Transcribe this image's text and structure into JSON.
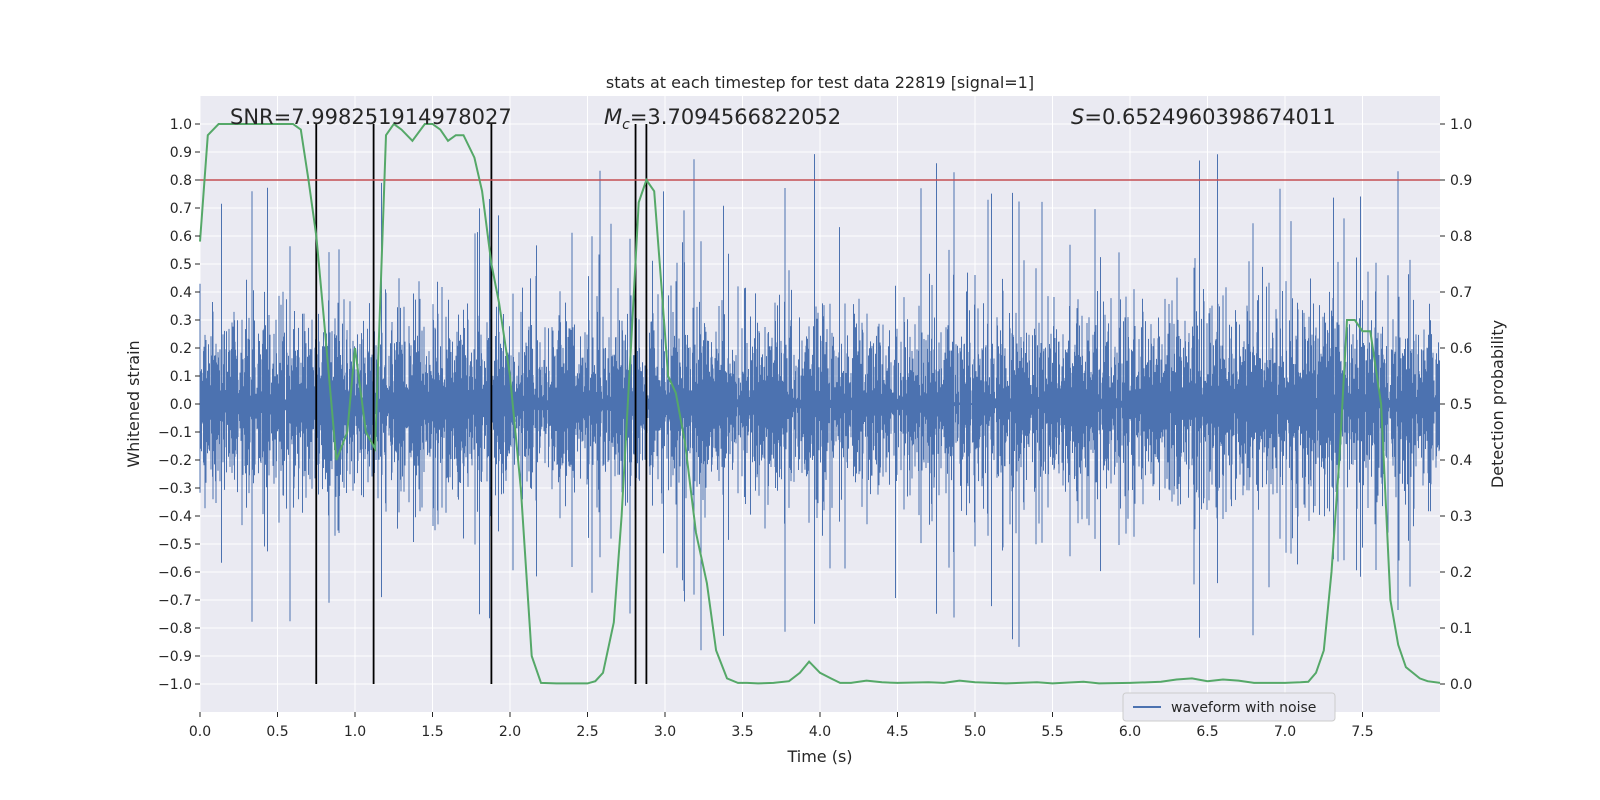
{
  "chart_data": {
    "type": "line",
    "title": "stats at each timestep for test data 22819 [signal=1]",
    "xlabel": "Time (s)",
    "ylabel_left": "Whitened strain",
    "ylabel_right": "Detection probability",
    "xlim": [
      0,
      8
    ],
    "ylim_left": [
      -1.1,
      1.1
    ],
    "ylim_right": [
      -0.05,
      1.05
    ],
    "x_ticks": [
      0.0,
      0.5,
      1.0,
      1.5,
      2.0,
      2.5,
      3.0,
      3.5,
      4.0,
      4.5,
      5.0,
      5.5,
      6.0,
      6.5,
      7.0,
      7.5
    ],
    "x_tick_labels": [
      "0.0",
      "0.5",
      "1.0",
      "1.5",
      "2.0",
      "2.5",
      "3.0",
      "3.5",
      "4.0",
      "4.5",
      "5.0",
      "5.5",
      "6.0",
      "6.5",
      "7.0",
      "7.5"
    ],
    "y_left_ticks": [
      -1.0,
      -0.9,
      -0.8,
      -0.7,
      -0.6,
      -0.5,
      -0.4,
      -0.3,
      -0.2,
      -0.1,
      0.0,
      0.1,
      0.2,
      0.3,
      0.4,
      0.5,
      0.6,
      0.7,
      0.8,
      0.9,
      1.0
    ],
    "y_left_tick_labels": [
      "−1.0",
      "−0.9",
      "−0.8",
      "−0.7",
      "−0.6",
      "−0.5",
      "−0.4",
      "−0.3",
      "−0.2",
      "−0.1",
      "0.0",
      "0.1",
      "0.2",
      "0.3",
      "0.4",
      "0.5",
      "0.6",
      "0.7",
      "0.8",
      "0.9",
      "1.0"
    ],
    "y_right_ticks": [
      0.0,
      0.1,
      0.2,
      0.3,
      0.4,
      0.5,
      0.6,
      0.7,
      0.8,
      0.9,
      1.0
    ],
    "y_right_tick_labels": [
      "0.0",
      "0.1",
      "0.2",
      "0.3",
      "0.4",
      "0.5",
      "0.6",
      "0.7",
      "0.8",
      "0.9",
      "1.0"
    ],
    "grid": true,
    "annotations": {
      "snr": "SNR=7.998251914978027",
      "mc_symbol": "M",
      "mc_subscript": "c",
      "mc_value": "=3.7094566822052",
      "s_symbol": "S",
      "s_value": "=0.6524960398674011"
    },
    "threshold_right": 0.9,
    "threshold_color": "#c44e52",
    "vertical_lines_x": [
      0.75,
      1.12,
      1.88,
      2.81,
      2.88
    ],
    "series": [
      {
        "name": "waveform with noise",
        "color": "#4c72b0",
        "description_values": "whitened strain noise, amplitude envelope about ±0.4 with spikes up to ±1.0, 4096 samples over 0–8 s"
      },
      {
        "name": "detection probability",
        "color": "#55a868",
        "x": [
          0.0,
          0.05,
          0.12,
          0.2,
          0.3,
          0.4,
          0.5,
          0.6,
          0.65,
          0.7,
          0.75,
          0.8,
          0.88,
          0.95,
          1.0,
          1.07,
          1.13,
          1.2,
          1.25,
          1.3,
          1.37,
          1.45,
          1.5,
          1.55,
          1.6,
          1.65,
          1.7,
          1.77,
          1.82,
          1.88,
          1.93,
          2.0,
          2.07,
          2.14,
          2.2,
          2.3,
          2.4,
          2.5,
          2.55,
          2.6,
          2.67,
          2.72,
          2.78,
          2.83,
          2.88,
          2.93,
          2.98,
          3.02,
          3.07,
          3.13,
          3.2,
          3.27,
          3.33,
          3.4,
          3.47,
          3.53,
          3.6,
          3.7,
          3.8,
          3.87,
          3.93,
          4.0,
          4.07,
          4.13,
          4.2,
          4.3,
          4.4,
          4.5,
          4.7,
          4.8,
          4.9,
          5.0,
          5.2,
          5.4,
          5.5,
          5.7,
          5.8,
          6.0,
          6.2,
          6.3,
          6.4,
          6.5,
          6.6,
          6.7,
          6.8,
          7.0,
          7.1,
          7.15,
          7.2,
          7.25,
          7.3,
          7.35,
          7.4,
          7.45,
          7.5,
          7.55,
          7.62,
          7.68,
          7.73,
          7.78,
          7.87,
          7.92,
          8.0
        ],
        "values": [
          0.79,
          0.98,
          1.0,
          1.0,
          1.0,
          1.0,
          1.0,
          1.0,
          0.99,
          0.9,
          0.8,
          0.65,
          0.4,
          0.45,
          0.6,
          0.45,
          0.42,
          0.98,
          1.0,
          0.99,
          0.97,
          1.0,
          1.0,
          0.99,
          0.97,
          0.98,
          0.98,
          0.94,
          0.88,
          0.75,
          0.68,
          0.55,
          0.35,
          0.05,
          0.002,
          0.001,
          0.001,
          0.001,
          0.005,
          0.02,
          0.11,
          0.3,
          0.6,
          0.86,
          0.9,
          0.88,
          0.7,
          0.55,
          0.52,
          0.43,
          0.27,
          0.18,
          0.06,
          0.01,
          0.002,
          0.002,
          0.001,
          0.002,
          0.005,
          0.02,
          0.04,
          0.02,
          0.01,
          0.002,
          0.002,
          0.006,
          0.003,
          0.002,
          0.003,
          0.002,
          0.006,
          0.003,
          0.001,
          0.003,
          0.001,
          0.004,
          0.001,
          0.002,
          0.004,
          0.008,
          0.01,
          0.005,
          0.008,
          0.006,
          0.002,
          0.002,
          0.003,
          0.004,
          0.02,
          0.06,
          0.2,
          0.4,
          0.65,
          0.65,
          0.63,
          0.63,
          0.5,
          0.15,
          0.07,
          0.03,
          0.01,
          0.005,
          0.002
        ]
      }
    ],
    "legend": {
      "position": "bottom-right",
      "entries": [
        "waveform with noise"
      ]
    }
  }
}
